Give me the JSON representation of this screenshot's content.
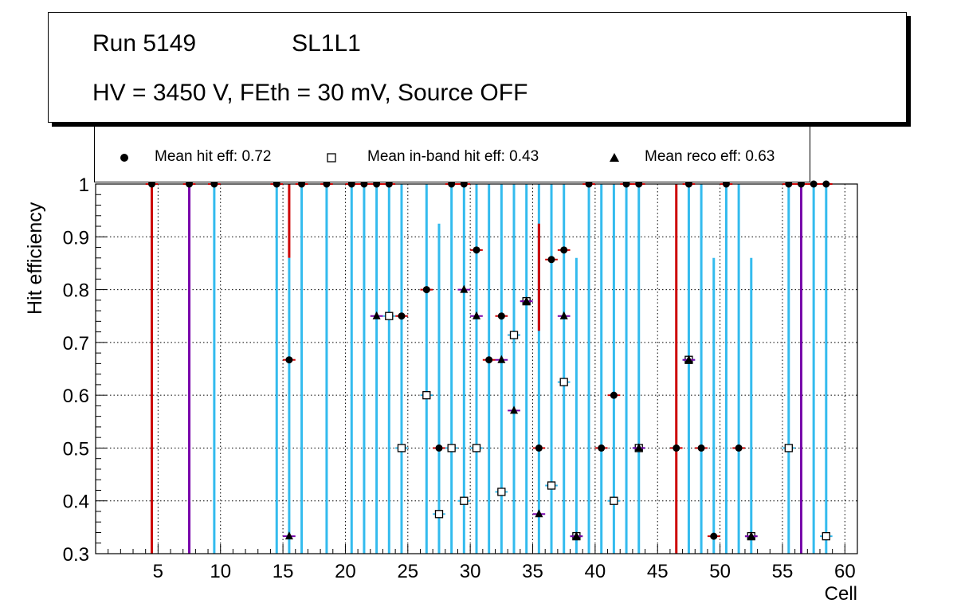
{
  "title": {
    "run": "Run 5149",
    "layer": "SL1L1",
    "conditions": "HV = 3450 V, FEth = 30 mV, Source OFF"
  },
  "legend": {
    "hit": "Mean hit  eff: 0.72",
    "inband": "Mean in-band hit eff: 0.43",
    "reco": "Mean reco eff: 0.63"
  },
  "colors": {
    "hit_err": "#cc0000",
    "inband_err": "#33bbee",
    "reco_err": "#7700aa",
    "grid": "#000000"
  },
  "chart_data": {
    "type": "scatter",
    "xlabel": "Cell",
    "ylabel": "Hit efficiency",
    "xlim": [
      0,
      61
    ],
    "ylim": [
      0.3,
      1.0
    ],
    "xticks": [
      5,
      10,
      15,
      20,
      25,
      30,
      35,
      40,
      45,
      50,
      55,
      60
    ],
    "yticks": [
      0.3,
      0.4,
      0.5,
      0.6,
      0.7,
      0.8,
      0.9,
      1.0
    ],
    "grid": true,
    "series": [
      {
        "name": "Mean hit  eff: 0.72",
        "marker": "circle",
        "color": "#cc0000",
        "x": [
          4.5,
          7.5,
          9.5,
          14.5,
          15.5,
          16.5,
          18.5,
          20.5,
          21.5,
          22.5,
          23.5,
          24.5,
          26.5,
          27.5,
          28.5,
          29.5,
          30.5,
          31.5,
          32.5,
          33.5,
          34.5,
          35.5,
          36.5,
          37.5,
          38.5,
          39.5,
          40.5,
          41.5,
          42.5,
          43.5,
          46.5,
          47.5,
          48.5,
          49.5,
          50.5,
          51.5,
          52.5,
          55.5,
          56.5,
          57.5,
          58.5
        ],
        "y": [
          1.0,
          1.0,
          1.0,
          1.0,
          0.667,
          1.0,
          1.0,
          1.0,
          1.0,
          1.0,
          1.0,
          0.75,
          0.8,
          0.5,
          1.0,
          1.0,
          0.875,
          0.667,
          0.75,
          0.714,
          0.778,
          0.5,
          0.857,
          0.875,
          0.333,
          1.0,
          0.5,
          0.6,
          1.0,
          1.0,
          0.5,
          1.0,
          0.5,
          0.333,
          1.0,
          0.5,
          0.333,
          1.0,
          1.0,
          1.0,
          1.0
        ]
      },
      {
        "name": "Mean in-band hit eff: 0.43",
        "marker": "open-square",
        "color": "#33bbee",
        "x": [
          23.5,
          24.5,
          26.5,
          27.5,
          28.5,
          29.5,
          30.5,
          32.5,
          33.5,
          34.5,
          36.5,
          37.5,
          38.5,
          41.5,
          43.5,
          47.5,
          52.5,
          55.5,
          58.5
        ],
        "y": [
          0.75,
          0.5,
          0.6,
          0.375,
          0.5,
          0.4,
          0.5,
          0.417,
          0.714,
          0.778,
          0.429,
          0.625,
          0.333,
          0.4,
          0.5,
          0.667,
          0.333,
          0.5,
          0.333
        ]
      },
      {
        "name": "Mean reco eff: 0.63",
        "marker": "triangle",
        "color": "#7700aa",
        "x": [
          15.5,
          22.5,
          29.5,
          30.5,
          32.5,
          33.5,
          34.5,
          35.5,
          37.5,
          38.5,
          43.5,
          47.5,
          52.5
        ],
        "y": [
          0.333,
          0.75,
          0.8,
          0.75,
          0.667,
          0.571,
          0.778,
          0.375,
          0.75,
          0.333,
          0.5,
          0.667,
          0.333
        ]
      }
    ],
    "error_bars": [
      {
        "x": 4.5,
        "low": 0.3,
        "high": 1.0,
        "color": "red"
      },
      {
        "x": 7.5,
        "low": 0.3,
        "high": 1.0,
        "color": "purple"
      },
      {
        "x": 9.5,
        "low": 0.3,
        "high": 1.0,
        "color": "cyan"
      },
      {
        "x": 14.5,
        "low": 0.3,
        "high": 1.0,
        "color": "cyan"
      },
      {
        "x": 15.5,
        "low": 0.86,
        "high": 1.0,
        "color": "red"
      },
      {
        "x": 15.5,
        "low": 0.3,
        "high": 0.86,
        "color": "cyan"
      },
      {
        "x": 16.5,
        "low": 0.3,
        "high": 1.0,
        "color": "cyan"
      },
      {
        "x": 18.5,
        "low": 0.3,
        "high": 1.0,
        "color": "cyan"
      },
      {
        "x": 20.5,
        "low": 0.3,
        "high": 1.0,
        "color": "cyan"
      },
      {
        "x": 21.5,
        "low": 0.3,
        "high": 1.0,
        "color": "cyan"
      },
      {
        "x": 22.5,
        "low": 0.3,
        "high": 1.0,
        "color": "cyan"
      },
      {
        "x": 23.5,
        "low": 0.3,
        "high": 1.0,
        "color": "cyan"
      },
      {
        "x": 24.5,
        "low": 0.3,
        "high": 1.0,
        "color": "cyan"
      },
      {
        "x": 26.5,
        "low": 0.3,
        "high": 1.0,
        "color": "cyan"
      },
      {
        "x": 27.5,
        "low": 0.3,
        "high": 0.925,
        "color": "cyan"
      },
      {
        "x": 28.5,
        "low": 0.3,
        "high": 1.0,
        "color": "cyan"
      },
      {
        "x": 29.5,
        "low": 0.3,
        "high": 1.0,
        "color": "cyan"
      },
      {
        "x": 30.5,
        "low": 0.3,
        "high": 1.0,
        "color": "cyan"
      },
      {
        "x": 31.5,
        "low": 0.3,
        "high": 1.0,
        "color": "cyan"
      },
      {
        "x": 32.5,
        "low": 0.3,
        "high": 1.0,
        "color": "cyan"
      },
      {
        "x": 33.5,
        "low": 0.3,
        "high": 1.0,
        "color": "cyan"
      },
      {
        "x": 34.5,
        "low": 0.3,
        "high": 1.0,
        "color": "cyan"
      },
      {
        "x": 35.5,
        "low": 0.3,
        "high": 1.0,
        "color": "cyan"
      },
      {
        "x": 35.5,
        "low": 0.722,
        "high": 0.925,
        "color": "red"
      },
      {
        "x": 36.5,
        "low": 0.3,
        "high": 1.0,
        "color": "cyan"
      },
      {
        "x": 37.5,
        "low": 0.3,
        "high": 1.0,
        "color": "cyan"
      },
      {
        "x": 38.5,
        "low": 0.3,
        "high": 0.86,
        "color": "cyan"
      },
      {
        "x": 39.5,
        "low": 0.3,
        "high": 1.0,
        "color": "cyan"
      },
      {
        "x": 40.5,
        "low": 0.3,
        "high": 1.0,
        "color": "cyan"
      },
      {
        "x": 41.5,
        "low": 0.3,
        "high": 1.0,
        "color": "cyan"
      },
      {
        "x": 42.5,
        "low": 0.3,
        "high": 1.0,
        "color": "cyan"
      },
      {
        "x": 43.5,
        "low": 0.3,
        "high": 1.0,
        "color": "cyan"
      },
      {
        "x": 46.5,
        "low": 0.3,
        "high": 1.0,
        "color": "red"
      },
      {
        "x": 47.5,
        "low": 0.3,
        "high": 1.0,
        "color": "cyan"
      },
      {
        "x": 48.5,
        "low": 0.3,
        "high": 1.0,
        "color": "cyan"
      },
      {
        "x": 49.5,
        "low": 0.3,
        "high": 0.86,
        "color": "cyan"
      },
      {
        "x": 50.5,
        "low": 0.3,
        "high": 1.0,
        "color": "cyan"
      },
      {
        "x": 51.5,
        "low": 0.3,
        "high": 1.0,
        "color": "cyan"
      },
      {
        "x": 52.5,
        "low": 0.3,
        "high": 0.86,
        "color": "cyan"
      },
      {
        "x": 55.5,
        "low": 0.3,
        "high": 1.0,
        "color": "cyan"
      },
      {
        "x": 56.5,
        "low": 0.3,
        "high": 1.0,
        "color": "purple"
      },
      {
        "x": 57.5,
        "low": 0.3,
        "high": 1.0,
        "color": "cyan"
      },
      {
        "x": 58.5,
        "low": 0.3,
        "high": 1.0,
        "color": "cyan"
      }
    ]
  }
}
